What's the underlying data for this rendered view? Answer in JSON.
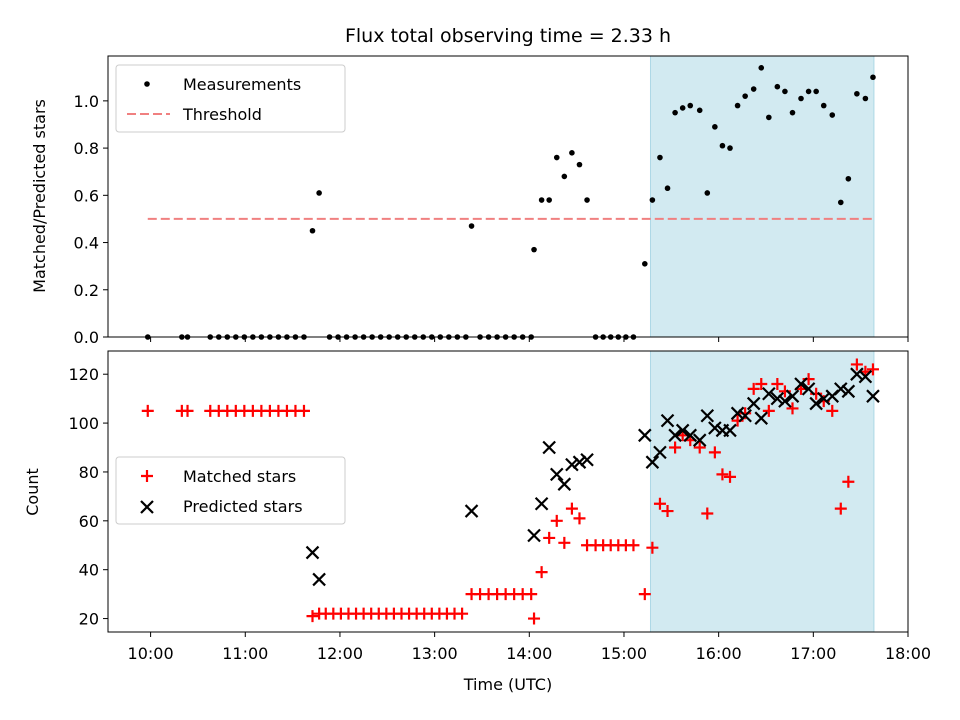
{
  "chart_data": [
    {
      "type": "scatter",
      "title": "Flux total observing time = 2.33 h",
      "xlabel": "",
      "ylabel": "Matched/Predicted stars",
      "xlim": [
        9.55,
        18.0
      ],
      "ylim": [
        0,
        1.19
      ],
      "yticks": [
        0.0,
        0.2,
        0.4,
        0.6,
        0.8,
        1.0
      ],
      "ytick_labels": [
        "0.0",
        "0.2",
        "0.4",
        "0.6",
        "0.8",
        "1.0"
      ],
      "shaded_interval": [
        15.28,
        17.64
      ],
      "shade_color": "#add8e6",
      "legend": {
        "location": "upper-left",
        "entries": [
          "Measurements",
          "Threshold"
        ]
      },
      "threshold": {
        "name": "Threshold",
        "y": 0.5,
        "x_range": [
          9.97,
          17.64
        ],
        "color": "#f08080"
      },
      "series": [
        {
          "name": "Measurements",
          "marker": "dot",
          "color": "#000000",
          "points": [
            [
              9.97,
              0
            ],
            [
              10.33,
              0
            ],
            [
              10.39,
              0
            ],
            [
              10.63,
              0
            ],
            [
              10.72,
              0
            ],
            [
              10.81,
              0
            ],
            [
              10.9,
              0
            ],
            [
              10.99,
              0
            ],
            [
              11.08,
              0
            ],
            [
              11.17,
              0
            ],
            [
              11.26,
              0
            ],
            [
              11.35,
              0
            ],
            [
              11.44,
              0
            ],
            [
              11.53,
              0
            ],
            [
              11.62,
              0
            ],
            [
              11.71,
              0.45
            ],
            [
              11.78,
              0.61
            ],
            [
              11.89,
              0
            ],
            [
              11.98,
              0
            ],
            [
              12.07,
              0
            ],
            [
              12.16,
              0
            ],
            [
              12.25,
              0
            ],
            [
              12.34,
              0
            ],
            [
              12.43,
              0
            ],
            [
              12.52,
              0
            ],
            [
              12.61,
              0
            ],
            [
              12.7,
              0
            ],
            [
              12.79,
              0
            ],
            [
              12.88,
              0
            ],
            [
              12.97,
              0
            ],
            [
              13.06,
              0
            ],
            [
              13.15,
              0
            ],
            [
              13.24,
              0
            ],
            [
              13.33,
              0
            ],
            [
              13.39,
              0.47
            ],
            [
              13.48,
              0
            ],
            [
              13.57,
              0
            ],
            [
              13.66,
              0
            ],
            [
              13.75,
              0
            ],
            [
              13.84,
              0
            ],
            [
              13.93,
              0
            ],
            [
              14.02,
              0
            ],
            [
              14.05,
              0.37
            ],
            [
              14.13,
              0.58
            ],
            [
              14.21,
              0.58
            ],
            [
              14.29,
              0.76
            ],
            [
              14.37,
              0.68
            ],
            [
              14.45,
              0.78
            ],
            [
              14.53,
              0.73
            ],
            [
              14.61,
              0.58
            ],
            [
              14.7,
              0
            ],
            [
              14.78,
              0
            ],
            [
              14.86,
              0
            ],
            [
              14.94,
              0
            ],
            [
              15.02,
              0
            ],
            [
              15.1,
              0
            ],
            [
              15.22,
              0.31
            ],
            [
              15.3,
              0.58
            ],
            [
              15.38,
              0.76
            ],
            [
              15.46,
              0.63
            ],
            [
              15.54,
              0.95
            ],
            [
              15.62,
              0.97
            ],
            [
              15.7,
              0.98
            ],
            [
              15.8,
              0.96
            ],
            [
              15.88,
              0.61
            ],
            [
              15.96,
              0.89
            ],
            [
              16.04,
              0.81
            ],
            [
              16.12,
              0.8
            ],
            [
              16.2,
              0.98
            ],
            [
              16.28,
              1.02
            ],
            [
              16.37,
              1.05
            ],
            [
              16.45,
              1.14
            ],
            [
              16.53,
              0.93
            ],
            [
              16.62,
              1.06
            ],
            [
              16.7,
              1.04
            ],
            [
              16.78,
              0.95
            ],
            [
              16.87,
              1.01
            ],
            [
              16.95,
              1.04
            ],
            [
              17.03,
              1.04
            ],
            [
              17.11,
              0.98
            ],
            [
              17.2,
              0.94
            ],
            [
              17.29,
              0.57
            ],
            [
              17.37,
              0.67
            ],
            [
              17.46,
              1.03
            ],
            [
              17.55,
              1.01
            ],
            [
              17.63,
              1.1
            ]
          ]
        }
      ]
    },
    {
      "type": "scatter",
      "title": "",
      "xlabel": "Time (UTC)",
      "ylabel": "Count",
      "xlim": [
        9.55,
        18.0
      ],
      "ylim": [
        14.5,
        129.5
      ],
      "yticks": [
        20,
        40,
        60,
        80,
        100,
        120
      ],
      "ytick_labels": [
        "20",
        "40",
        "60",
        "80",
        "100",
        "120"
      ],
      "xticks": [
        10,
        11,
        12,
        13,
        14,
        15,
        16,
        17,
        18
      ],
      "xtick_labels": [
        "10:00",
        "11:00",
        "12:00",
        "13:00",
        "14:00",
        "15:00",
        "16:00",
        "17:00",
        "18:00"
      ],
      "shaded_interval": [
        15.28,
        17.64
      ],
      "shade_color": "#add8e6",
      "legend": {
        "location": "center-left",
        "entries": [
          "Matched stars",
          "Predicted stars"
        ]
      },
      "series": [
        {
          "name": "Matched stars",
          "marker": "plus",
          "color": "#ff0000",
          "points": [
            [
              9.97,
              105
            ],
            [
              10.33,
              105
            ],
            [
              10.39,
              105
            ],
            [
              10.63,
              105
            ],
            [
              10.72,
              105
            ],
            [
              10.81,
              105
            ],
            [
              10.9,
              105
            ],
            [
              10.99,
              105
            ],
            [
              11.08,
              105
            ],
            [
              11.17,
              105
            ],
            [
              11.26,
              105
            ],
            [
              11.35,
              105
            ],
            [
              11.44,
              105
            ],
            [
              11.53,
              105
            ],
            [
              11.62,
              105
            ],
            [
              11.71,
              21
            ],
            [
              11.78,
              22
            ],
            [
              11.85,
              22
            ],
            [
              11.93,
              22
            ],
            [
              12.01,
              22
            ],
            [
              12.09,
              22
            ],
            [
              12.17,
              22
            ],
            [
              12.25,
              22
            ],
            [
              12.33,
              22
            ],
            [
              12.41,
              22
            ],
            [
              12.49,
              22
            ],
            [
              12.57,
              22
            ],
            [
              12.65,
              22
            ],
            [
              12.73,
              22
            ],
            [
              12.81,
              22
            ],
            [
              12.89,
              22
            ],
            [
              12.97,
              22
            ],
            [
              13.05,
              22
            ],
            [
              13.13,
              22
            ],
            [
              13.21,
              22
            ],
            [
              13.29,
              22
            ],
            [
              13.39,
              30
            ],
            [
              13.48,
              30
            ],
            [
              13.57,
              30
            ],
            [
              13.66,
              30
            ],
            [
              13.75,
              30
            ],
            [
              13.84,
              30
            ],
            [
              13.93,
              30
            ],
            [
              14.02,
              30
            ],
            [
              14.05,
              20
            ],
            [
              14.13,
              39
            ],
            [
              14.21,
              53
            ],
            [
              14.29,
              60
            ],
            [
              14.37,
              51
            ],
            [
              14.45,
              65
            ],
            [
              14.53,
              61
            ],
            [
              14.61,
              50
            ],
            [
              14.7,
              50
            ],
            [
              14.78,
              50
            ],
            [
              14.86,
              50
            ],
            [
              14.94,
              50
            ],
            [
              15.02,
              50
            ],
            [
              15.1,
              50
            ],
            [
              15.22,
              30
            ],
            [
              15.3,
              49
            ],
            [
              15.38,
              67
            ],
            [
              15.46,
              64
            ],
            [
              15.54,
              90
            ],
            [
              15.62,
              95
            ],
            [
              15.7,
              93
            ],
            [
              15.8,
              90
            ],
            [
              15.88,
              63
            ],
            [
              15.96,
              88
            ],
            [
              16.04,
              79
            ],
            [
              16.12,
              78
            ],
            [
              16.2,
              101
            ],
            [
              16.28,
              104
            ],
            [
              16.37,
              114
            ],
            [
              16.45,
              116
            ],
            [
              16.53,
              105
            ],
            [
              16.62,
              116
            ],
            [
              16.7,
              113
            ],
            [
              16.78,
              106
            ],
            [
              16.87,
              114
            ],
            [
              16.95,
              118
            ],
            [
              17.03,
              112
            ],
            [
              17.11,
              109
            ],
            [
              17.2,
              105
            ],
            [
              17.29,
              65
            ],
            [
              17.37,
              76
            ],
            [
              17.46,
              124
            ],
            [
              17.55,
              121
            ],
            [
              17.63,
              122
            ]
          ]
        },
        {
          "name": "Predicted stars",
          "marker": "x",
          "color": "#000000",
          "points": [
            [
              11.71,
              47
            ],
            [
              11.78,
              36
            ],
            [
              13.39,
              64
            ],
            [
              14.05,
              54
            ],
            [
              14.13,
              67
            ],
            [
              14.21,
              90
            ],
            [
              14.29,
              79
            ],
            [
              14.37,
              75
            ],
            [
              14.45,
              83
            ],
            [
              14.53,
              84
            ],
            [
              14.61,
              85
            ],
            [
              15.22,
              95
            ],
            [
              15.3,
              84
            ],
            [
              15.38,
              88
            ],
            [
              15.46,
              101
            ],
            [
              15.54,
              95
            ],
            [
              15.62,
              97
            ],
            [
              15.7,
              95
            ],
            [
              15.8,
              93
            ],
            [
              15.88,
              103
            ],
            [
              15.96,
              98
            ],
            [
              16.04,
              97
            ],
            [
              16.12,
              97
            ],
            [
              16.2,
              104
            ],
            [
              16.28,
              103
            ],
            [
              16.37,
              108
            ],
            [
              16.45,
              102
            ],
            [
              16.53,
              112
            ],
            [
              16.62,
              110
            ],
            [
              16.7,
              109
            ],
            [
              16.78,
              111
            ],
            [
              16.87,
              116
            ],
            [
              16.95,
              114
            ],
            [
              17.03,
              108
            ],
            [
              17.11,
              110
            ],
            [
              17.2,
              111
            ],
            [
              17.29,
              114
            ],
            [
              17.37,
              113
            ],
            [
              17.46,
              120
            ],
            [
              17.55,
              119
            ],
            [
              17.63,
              111
            ]
          ]
        }
      ]
    }
  ]
}
